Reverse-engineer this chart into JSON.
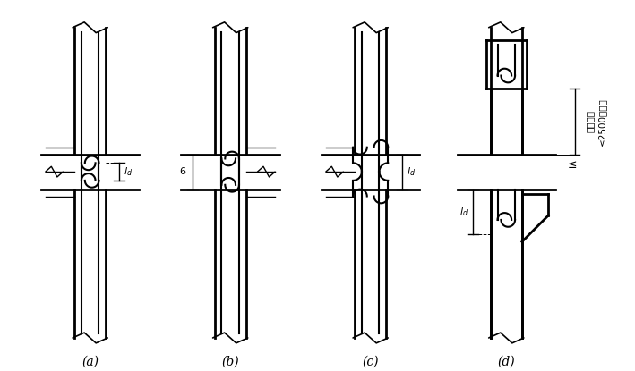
{
  "background_color": "#ffffff",
  "line_color": "#000000",
  "labels": [
    "(a)",
    "(b)",
    "(c)",
    "(d)"
  ],
  "fig_width": 7.09,
  "fig_height": 4.15
}
